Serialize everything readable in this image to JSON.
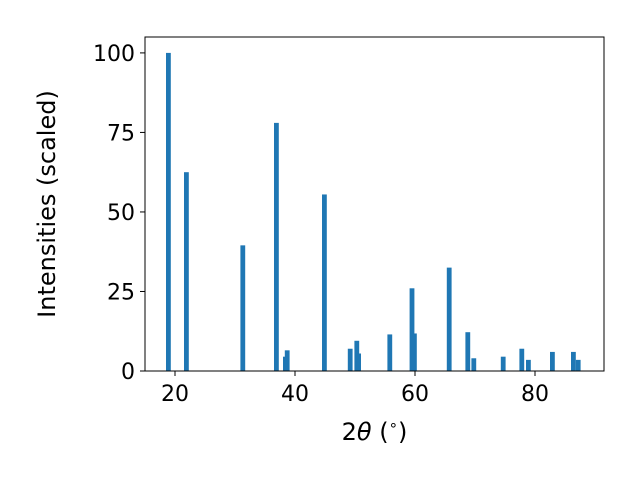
{
  "chart_data": {
    "type": "bar",
    "xlabel_parts": {
      "pre": "2",
      "theta": "θ",
      "post": " (",
      "deg": "∘",
      "close": ")"
    },
    "ylabel": "Intensities (scaled)",
    "xlim": [
      15,
      91.5
    ],
    "ylim": [
      0,
      105
    ],
    "xticks": [
      20,
      40,
      60,
      80
    ],
    "yticks": [
      0,
      25,
      50,
      75,
      100
    ],
    "bar_width": 0.8,
    "grid": false,
    "bar_color": "#1f77b4",
    "x": [
      18.9,
      21.9,
      31.3,
      36.9,
      38.4,
      38.7,
      44.9,
      49.2,
      50.3,
      50.6,
      55.8,
      59.5,
      59.9,
      65.7,
      68.8,
      69.8,
      74.7,
      77.8,
      78.9,
      82.9,
      86.4,
      87.2
    ],
    "values": [
      100,
      62.5,
      39.5,
      78,
      4.5,
      6.5,
      55.5,
      7,
      9.5,
      5.5,
      11.5,
      26,
      11.8,
      32.5,
      12.2,
      4,
      4.5,
      7,
      3.5,
      6,
      6,
      3.5
    ]
  }
}
